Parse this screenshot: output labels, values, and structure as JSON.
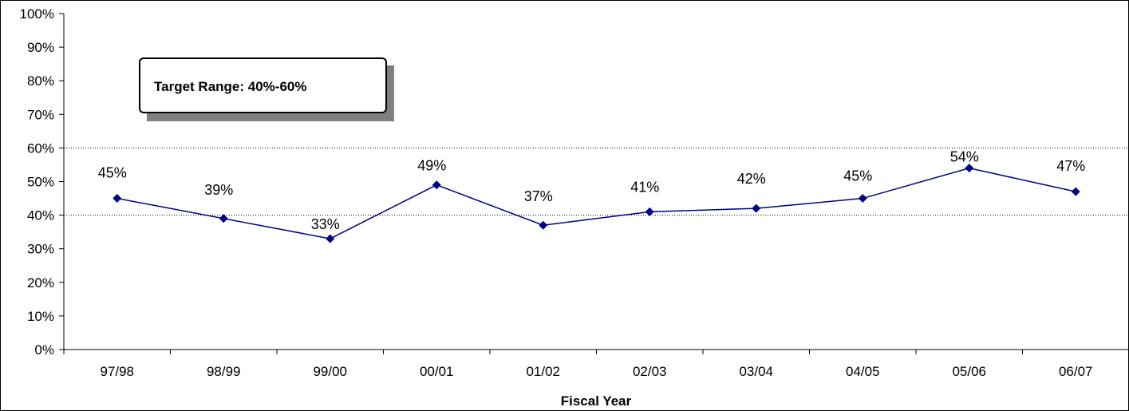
{
  "chart_data": {
    "type": "line",
    "title": "",
    "xlabel": "Fiscal Year",
    "ylabel": "",
    "categories": [
      "97/98",
      "98/99",
      "99/00",
      "00/01",
      "01/02",
      "02/03",
      "03/04",
      "04/05",
      "05/06",
      "06/07"
    ],
    "series": [
      {
        "values": [
          45,
          39,
          33,
          49,
          37,
          41,
          42,
          45,
          54,
          47
        ],
        "labels": [
          "45%",
          "39%",
          "33%",
          "49%",
          "37%",
          "41%",
          "42%",
          "45%",
          "54%",
          "47%"
        ],
        "color": "#000080",
        "marker": "diamond"
      }
    ],
    "ylim": [
      0,
      100
    ],
    "yticks": [
      "0%",
      "10%",
      "20%",
      "30%",
      "40%",
      "50%",
      "60%",
      "70%",
      "80%",
      "90%",
      "100%"
    ],
    "reference_lines": [
      40,
      60
    ],
    "reference_line_style": "dotted",
    "grid": false,
    "legend": "none",
    "annotation": {
      "text": "Target Range: 40%-60%"
    }
  }
}
